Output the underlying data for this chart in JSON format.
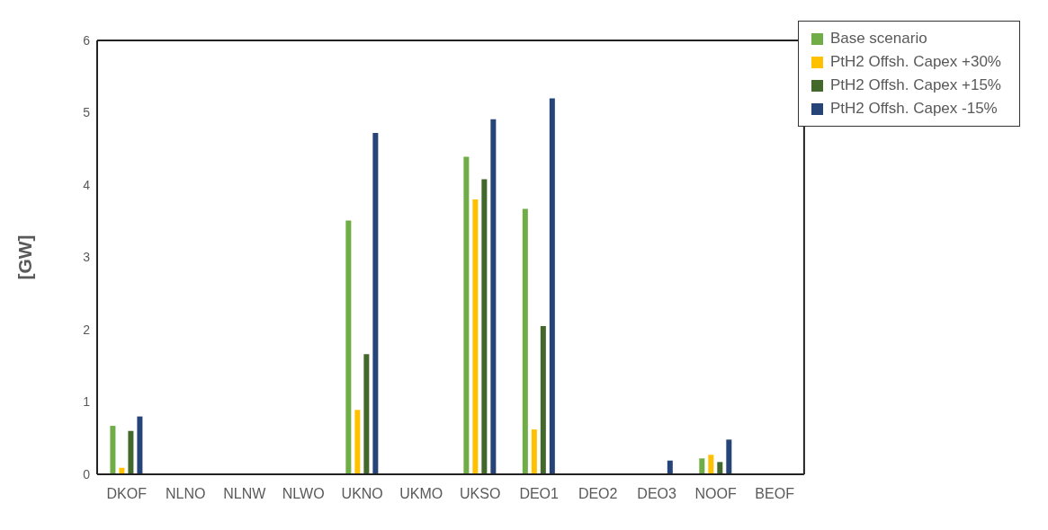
{
  "chart_data": {
    "type": "bar",
    "ylabel": "[GW]",
    "categories": [
      "DKOF",
      "NLNO",
      "NLNW",
      "NLWO",
      "UKNO",
      "UKMO",
      "UKSO",
      "DEO1",
      "DEO2",
      "DEO3",
      "NOOF",
      "BEOF"
    ],
    "series": [
      {
        "name": "Base scenario",
        "color": "#70ad47",
        "values": [
          0.67,
          0,
          0,
          0,
          3.51,
          0,
          4.39,
          3.67,
          0,
          0,
          0.22,
          0
        ]
      },
      {
        "name": "PtH2 Offsh. Capex +30%",
        "color": "#ffc000",
        "values": [
          0.09,
          0,
          0,
          0,
          0.89,
          0,
          3.8,
          0.62,
          0,
          0,
          0.27,
          0
        ]
      },
      {
        "name": "PtH2 Offsh. Capex +15%",
        "color": "#43682b",
        "values": [
          0.6,
          0,
          0,
          0,
          1.66,
          0,
          4.08,
          2.05,
          0,
          0,
          0.17,
          0
        ]
      },
      {
        "name": "PtH2 Offsh. Capex -15%",
        "color": "#264478",
        "values": [
          0.8,
          0,
          0,
          0,
          4.72,
          0,
          4.91,
          5.2,
          0,
          0.19,
          0.48,
          0
        ]
      }
    ],
    "ylim": [
      0,
      6
    ],
    "yticks": [
      0,
      1,
      2,
      3,
      4,
      5,
      6
    ],
    "grid": false,
    "legend": "top right"
  }
}
